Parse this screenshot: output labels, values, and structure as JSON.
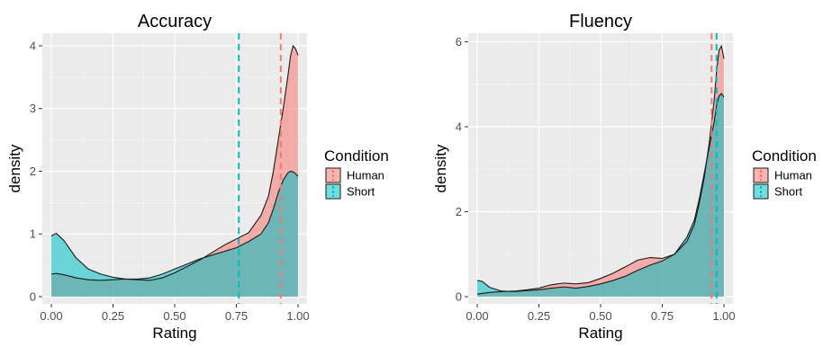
{
  "chart_data": [
    {
      "type": "area",
      "title": "Accuracy",
      "xlabel": "Rating",
      "ylabel": "density",
      "xlim": [
        0,
        1
      ],
      "ylim": [
        0,
        4.2
      ],
      "x_ticks": [
        0,
        0.25,
        0.5,
        0.75,
        1
      ],
      "x_tick_labels": [
        "0.00",
        "0.25",
        "0.50",
        "0.75",
        "1.00"
      ],
      "y_ticks": [
        0,
        1,
        2,
        3,
        4
      ],
      "y_tick_labels": [
        "0",
        "1",
        "2",
        "3",
        "4"
      ],
      "grid": true,
      "legend": {
        "title": "Condition",
        "placement": "right",
        "entries": [
          "Human",
          "Short"
        ]
      },
      "series": [
        {
          "name": "Human",
          "color": "#F8766D",
          "fill": "rgba(248,118,109,0.55)",
          "mean": 0.93,
          "x": [
            0,
            0.02,
            0.05,
            0.1,
            0.15,
            0.2,
            0.25,
            0.3,
            0.35,
            0.4,
            0.45,
            0.5,
            0.55,
            0.6,
            0.65,
            0.7,
            0.75,
            0.8,
            0.85,
            0.88,
            0.9,
            0.92,
            0.94,
            0.96,
            0.97,
            0.98,
            0.99,
            1.0
          ],
          "y": [
            0.36,
            0.37,
            0.35,
            0.3,
            0.27,
            0.26,
            0.27,
            0.28,
            0.27,
            0.26,
            0.3,
            0.38,
            0.48,
            0.58,
            0.7,
            0.82,
            0.92,
            1.02,
            1.3,
            1.6,
            2.0,
            2.5,
            3.0,
            3.55,
            3.85,
            4.0,
            3.95,
            3.85
          ]
        },
        {
          "name": "Short",
          "color": "#00BFC4",
          "fill": "rgba(0,191,196,0.55)",
          "mean": 0.76,
          "x": [
            0,
            0.02,
            0.05,
            0.1,
            0.15,
            0.2,
            0.25,
            0.3,
            0.35,
            0.4,
            0.45,
            0.5,
            0.55,
            0.6,
            0.65,
            0.7,
            0.75,
            0.8,
            0.85,
            0.88,
            0.9,
            0.92,
            0.94,
            0.96,
            0.97,
            0.98,
            0.99,
            1.0
          ],
          "y": [
            0.97,
            1.01,
            0.9,
            0.62,
            0.44,
            0.36,
            0.31,
            0.28,
            0.28,
            0.3,
            0.36,
            0.44,
            0.52,
            0.6,
            0.66,
            0.72,
            0.78,
            0.88,
            1.0,
            1.18,
            1.4,
            1.66,
            1.86,
            1.98,
            2.0,
            1.99,
            1.96,
            1.92
          ]
        }
      ]
    },
    {
      "type": "area",
      "title": "Fluency",
      "xlabel": "Rating",
      "ylabel": "density",
      "xlim": [
        0,
        1
      ],
      "ylim": [
        0,
        6.2
      ],
      "x_ticks": [
        0,
        0.25,
        0.5,
        0.75,
        1
      ],
      "x_tick_labels": [
        "0.00",
        "0.25",
        "0.50",
        "0.75",
        "1.00"
      ],
      "y_ticks": [
        0,
        2,
        4,
        6
      ],
      "y_tick_labels": [
        "0",
        "2",
        "4",
        "6"
      ],
      "grid": true,
      "legend": {
        "title": "Condition",
        "placement": "right",
        "entries": [
          "Human",
          "Short"
        ]
      },
      "series": [
        {
          "name": "Human",
          "color": "#F8766D",
          "fill": "rgba(248,118,109,0.55)",
          "mean": 0.95,
          "x": [
            0,
            0.05,
            0.1,
            0.15,
            0.2,
            0.25,
            0.3,
            0.35,
            0.4,
            0.45,
            0.5,
            0.55,
            0.6,
            0.65,
            0.7,
            0.75,
            0.8,
            0.85,
            0.88,
            0.9,
            0.92,
            0.94,
            0.96,
            0.97,
            0.98,
            0.99,
            1.0
          ],
          "y": [
            0.06,
            0.1,
            0.12,
            0.13,
            0.16,
            0.2,
            0.28,
            0.32,
            0.3,
            0.33,
            0.43,
            0.55,
            0.7,
            0.86,
            0.92,
            0.9,
            1.0,
            1.3,
            1.7,
            2.2,
            2.8,
            3.6,
            4.6,
            5.3,
            5.8,
            5.9,
            5.6
          ]
        },
        {
          "name": "Short",
          "color": "#00BFC4",
          "fill": "rgba(0,191,196,0.55)",
          "mean": 0.97,
          "x": [
            0,
            0.02,
            0.05,
            0.1,
            0.15,
            0.2,
            0.25,
            0.3,
            0.35,
            0.4,
            0.45,
            0.5,
            0.55,
            0.6,
            0.65,
            0.7,
            0.75,
            0.8,
            0.85,
            0.88,
            0.9,
            0.92,
            0.94,
            0.96,
            0.97,
            0.98,
            0.99,
            1.0
          ],
          "y": [
            0.38,
            0.36,
            0.22,
            0.13,
            0.12,
            0.14,
            0.16,
            0.2,
            0.23,
            0.2,
            0.24,
            0.3,
            0.38,
            0.48,
            0.62,
            0.74,
            0.84,
            1.0,
            1.4,
            1.8,
            2.3,
            2.9,
            3.5,
            4.1,
            4.5,
            4.72,
            4.78,
            4.7
          ]
        }
      ]
    }
  ]
}
